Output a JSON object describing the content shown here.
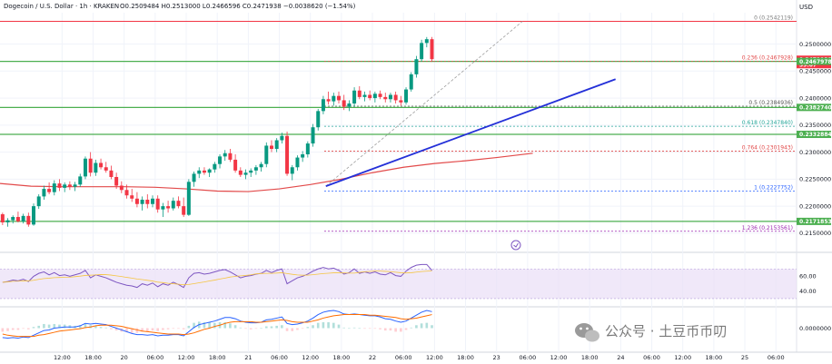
{
  "header": {
    "symbol": "Dogecoin / U.S. Dollar · 1h · KRAKEN",
    "ohlc": "O0.2509484 H0.2513000 L0.2466596 C0.2471938 −0.0038620 (−1.54%)"
  },
  "currency": "USD",
  "watermark": "公众号 · 土豆币币叨",
  "colors": {
    "up": "#089981",
    "down": "#f23645",
    "trend": "#2430d8",
    "ma": "#e24a4a",
    "support": "#4caf50",
    "rsi": "#7e57c2",
    "rsi_band": "#e9def7",
    "macd": "#2962ff",
    "signal": "#ff6d00"
  },
  "chart_data": {
    "type": "candlestick",
    "ylim": [
      0.2128,
      0.2558
    ],
    "y_ticks": [
      "0.2500000",
      "0.2450000",
      "0.2400000",
      "0.2350000",
      "0.2300000",
      "0.2250000",
      "0.2200000",
      "0.2150000"
    ],
    "x_ticks": [
      {
        "label": "00",
        "t": 0
      },
      {
        "label": "12:00",
        "t": 12
      },
      {
        "label": "18:00",
        "t": 18
      },
      {
        "label": "20",
        "t": 24
      },
      {
        "label": "06:00",
        "t": 30
      },
      {
        "label": "12:00",
        "t": 36
      },
      {
        "label": "18:00",
        "t": 42
      },
      {
        "label": "21",
        "t": 48
      },
      {
        "label": "06:00",
        "t": 54
      },
      {
        "label": "12:00",
        "t": 60
      },
      {
        "label": "18:00",
        "t": 66
      },
      {
        "label": "22",
        "t": 72
      },
      {
        "label": "06:00",
        "t": 78
      },
      {
        "label": "12:00",
        "t": 84
      },
      {
        "label": "18:00",
        "t": 90
      },
      {
        "label": "23",
        "t": 96
      },
      {
        "label": "06:00",
        "t": 102
      },
      {
        "label": "12:00",
        "t": 108
      },
      {
        "label": "18:00",
        "t": 114
      },
      {
        "label": "24",
        "t": 120
      },
      {
        "label": "06:00",
        "t": 126
      },
      {
        "label": "12:00",
        "t": 132
      },
      {
        "label": "18:00",
        "t": 138
      },
      {
        "label": "25",
        "t": 144
      },
      {
        "label": "06:00",
        "t": 150
      }
    ],
    "x_range": [
      0,
      154
    ],
    "candles": [
      [
        0.2185,
        0.2188,
        0.2165,
        0.217
      ],
      [
        0.217,
        0.2178,
        0.2162,
        0.2174
      ],
      [
        0.2174,
        0.2183,
        0.2168,
        0.218
      ],
      [
        0.218,
        0.219,
        0.217,
        0.2172
      ],
      [
        0.2172,
        0.2186,
        0.2168,
        0.2182
      ],
      [
        0.2182,
        0.2188,
        0.2162,
        0.2166
      ],
      [
        0.2166,
        0.2205,
        0.2164,
        0.22
      ],
      [
        0.22,
        0.2222,
        0.2195,
        0.2218
      ],
      [
        0.2218,
        0.2238,
        0.2212,
        0.2232
      ],
      [
        0.2232,
        0.2244,
        0.2222,
        0.2226
      ],
      [
        0.2226,
        0.2248,
        0.222,
        0.2242
      ],
      [
        0.2242,
        0.225,
        0.2228,
        0.2234
      ],
      [
        0.2234,
        0.2244,
        0.2226,
        0.224
      ],
      [
        0.224,
        0.2246,
        0.223,
        0.2236
      ],
      [
        0.2236,
        0.2245,
        0.2228,
        0.224
      ],
      [
        0.224,
        0.226,
        0.2236,
        0.2255
      ],
      [
        0.2255,
        0.2292,
        0.225,
        0.2288
      ],
      [
        0.2288,
        0.23,
        0.2255,
        0.2262
      ],
      [
        0.2262,
        0.2286,
        0.2256,
        0.228
      ],
      [
        0.228,
        0.2288,
        0.2268,
        0.2272
      ],
      [
        0.2272,
        0.2282,
        0.2262,
        0.2266
      ],
      [
        0.2266,
        0.2275,
        0.225,
        0.2254
      ],
      [
        0.2254,
        0.2262,
        0.2232,
        0.2238
      ],
      [
        0.2238,
        0.2246,
        0.2224,
        0.223
      ],
      [
        0.223,
        0.224,
        0.2214,
        0.222
      ],
      [
        0.222,
        0.2232,
        0.2208,
        0.2214
      ],
      [
        0.2214,
        0.2226,
        0.2198,
        0.2204
      ],
      [
        0.2204,
        0.2218,
        0.2192,
        0.2212
      ],
      [
        0.2212,
        0.2222,
        0.2196,
        0.2204
      ],
      [
        0.2204,
        0.222,
        0.2198,
        0.2214
      ],
      [
        0.2214,
        0.222,
        0.2188,
        0.2194
      ],
      [
        0.2194,
        0.2206,
        0.218,
        0.22
      ],
      [
        0.22,
        0.221,
        0.2188,
        0.2196
      ],
      [
        0.2196,
        0.2216,
        0.2192,
        0.221
      ],
      [
        0.221,
        0.2218,
        0.2196,
        0.22
      ],
      [
        0.22,
        0.2216,
        0.218,
        0.2184
      ],
      [
        0.2184,
        0.225,
        0.2182,
        0.2245
      ],
      [
        0.2245,
        0.2264,
        0.2236,
        0.226
      ],
      [
        0.226,
        0.2272,
        0.2252,
        0.2266
      ],
      [
        0.2266,
        0.2272,
        0.2258,
        0.2262
      ],
      [
        0.2262,
        0.227,
        0.2254,
        0.2268
      ],
      [
        0.2268,
        0.2282,
        0.2262,
        0.2278
      ],
      [
        0.2278,
        0.2296,
        0.227,
        0.2292
      ],
      [
        0.2292,
        0.2304,
        0.2284,
        0.2298
      ],
      [
        0.2298,
        0.2306,
        0.2282,
        0.2286
      ],
      [
        0.2286,
        0.2296,
        0.2262,
        0.2266
      ],
      [
        0.2266,
        0.2272,
        0.2254,
        0.2258
      ],
      [
        0.2258,
        0.2268,
        0.225,
        0.2262
      ],
      [
        0.2262,
        0.227,
        0.2254,
        0.2266
      ],
      [
        0.2266,
        0.2276,
        0.2258,
        0.2272
      ],
      [
        0.2272,
        0.2282,
        0.2264,
        0.2278
      ],
      [
        0.2278,
        0.2318,
        0.2272,
        0.2312
      ],
      [
        0.2312,
        0.2322,
        0.23,
        0.2306
      ],
      [
        0.2306,
        0.2326,
        0.23,
        0.2322
      ],
      [
        0.2322,
        0.2336,
        0.2316,
        0.233
      ],
      [
        0.233,
        0.2338,
        0.2256,
        0.226
      ],
      [
        0.226,
        0.2276,
        0.2248,
        0.2272
      ],
      [
        0.2272,
        0.2294,
        0.2266,
        0.229
      ],
      [
        0.229,
        0.2302,
        0.2282,
        0.2296
      ],
      [
        0.2296,
        0.232,
        0.229,
        0.2316
      ],
      [
        0.2316,
        0.2352,
        0.231,
        0.2346
      ],
      [
        0.2346,
        0.238,
        0.234,
        0.2376
      ],
      [
        0.2376,
        0.2404,
        0.237,
        0.2398
      ],
      [
        0.2398,
        0.2412,
        0.2388,
        0.2394
      ],
      [
        0.2394,
        0.241,
        0.2386,
        0.2404
      ],
      [
        0.2404,
        0.2412,
        0.239,
        0.2396
      ],
      [
        0.2396,
        0.2406,
        0.2378,
        0.2384
      ],
      [
        0.2384,
        0.2396,
        0.2376,
        0.239
      ],
      [
        0.239,
        0.242,
        0.2384,
        0.2414
      ],
      [
        0.2414,
        0.2422,
        0.2398,
        0.2402
      ],
      [
        0.2402,
        0.2412,
        0.2394,
        0.2406
      ],
      [
        0.2406,
        0.2414,
        0.2396,
        0.24
      ],
      [
        0.24,
        0.2412,
        0.2392,
        0.2408
      ],
      [
        0.2408,
        0.2414,
        0.2398,
        0.2402
      ],
      [
        0.2402,
        0.241,
        0.2392,
        0.2398
      ],
      [
        0.2398,
        0.241,
        0.2392,
        0.2406
      ],
      [
        0.2406,
        0.2412,
        0.239,
        0.2396
      ],
      [
        0.2396,
        0.2404,
        0.2386,
        0.2392
      ],
      [
        0.2392,
        0.242,
        0.2388,
        0.2416
      ],
      [
        0.2416,
        0.2448,
        0.2412,
        0.2444
      ],
      [
        0.2444,
        0.2478,
        0.2438,
        0.2472
      ],
      [
        0.2472,
        0.2508,
        0.2468,
        0.2502
      ],
      [
        0.2502,
        0.2513,
        0.2494,
        0.2509
      ],
      [
        0.2509,
        0.2513,
        0.2467,
        0.2472
      ]
    ],
    "ma": {
      "name": "MA",
      "values": [
        [
          0,
          0.2242
        ],
        [
          6,
          0.2237
        ],
        [
          12,
          0.2236
        ],
        [
          18,
          0.2236
        ],
        [
          24,
          0.2236
        ],
        [
          30,
          0.2235
        ],
        [
          36,
          0.2232
        ],
        [
          42,
          0.2228
        ],
        [
          48,
          0.2227
        ],
        [
          54,
          0.2232
        ],
        [
          60,
          0.224
        ],
        [
          66,
          0.225
        ],
        [
          72,
          0.2262
        ],
        [
          78,
          0.2272
        ],
        [
          84,
          0.2279
        ],
        [
          90,
          0.2284
        ],
        [
          96,
          0.229
        ],
        [
          103,
          0.2298
        ]
      ]
    },
    "trendline": [
      [
        63,
        0.2237
      ],
      [
        119,
        0.2435
      ]
    ],
    "projection": [
      [
        63,
        0.2237
      ],
      [
        101,
        0.2542
      ]
    ],
    "support_lines": [
      0.2467978,
      0.238274,
      0.2332884,
      0.2171853
    ],
    "fibonacci": [
      {
        "label": "0 (0.2542119)",
        "value": 0.2542119,
        "color": "#7b7b7b"
      },
      {
        "label": "0.236 (0.2467928)",
        "value": 0.2467928,
        "color": "#e24a4a"
      },
      {
        "label": "0.5 (0.2384936)",
        "value": 0.2384936,
        "color": "#555555"
      },
      {
        "label": "0.618 (0.2347840)",
        "value": 0.234784,
        "color": "#26a69a"
      },
      {
        "label": "0.764 (0.2301943)",
        "value": 0.2301943,
        "color": "#e24a4a"
      },
      {
        "label": "1 (0.2227752)",
        "value": 0.2227752,
        "color": "#2962ff"
      },
      {
        "label": "1.236 (0.2153561)",
        "value": 0.2153561,
        "color": "#9c27b0"
      }
    ],
    "price_tags": [
      {
        "value": 0.2471938,
        "text": "0.2471938",
        "sub": "39:07",
        "color": "#f23645"
      },
      {
        "value": 0.2467978,
        "text": "0.2467978",
        "color": "#4caf50"
      },
      {
        "value": 0.238274,
        "text": "0.2382740",
        "color": "#4caf50"
      },
      {
        "value": 0.2332884,
        "text": "0.2332884",
        "color": "#4caf50"
      },
      {
        "value": 0.2171853,
        "text": "0.2171853",
        "color": "#4caf50"
      }
    ],
    "rsi": {
      "ylim": [
        25,
        85
      ],
      "band": [
        30,
        70
      ],
      "ticks": [
        "60.00",
        "40.00"
      ],
      "values": [
        52,
        53,
        55,
        54,
        56,
        53,
        60,
        64,
        66,
        62,
        65,
        61,
        62,
        60,
        62,
        64,
        68,
        58,
        62,
        60,
        58,
        55,
        52,
        50,
        48,
        47,
        45,
        50,
        48,
        51,
        46,
        50,
        48,
        52,
        49,
        45,
        58,
        64,
        65,
        63,
        64,
        66,
        68,
        69,
        66,
        62,
        58,
        60,
        61,
        63,
        64,
        68,
        65,
        68,
        70,
        50,
        54,
        58,
        60,
        63,
        67,
        70,
        72,
        70,
        71,
        68,
        63,
        65,
        70,
        64,
        66,
        64,
        66,
        63,
        62,
        65,
        61,
        60,
        67,
        72,
        75,
        76,
        76,
        68
      ]
    },
    "macd": {
      "ylim": [
        -0.003,
        0.003
      ],
      "ticks": [
        "0.0000000"
      ],
      "macd": [
        -0.0016,
        -0.0017,
        -0.0016,
        -0.0017,
        -0.0015,
        -0.0016,
        -0.0012,
        -0.0008,
        -0.0004,
        -0.0003,
        0.0,
        0.0001,
        0.0002,
        0.0002,
        0.0002,
        0.0004,
        0.0008,
        0.0007,
        0.0008,
        0.0007,
        0.0006,
        0.0003,
        0.0,
        -0.0003,
        -0.0006,
        -0.0009,
        -0.0011,
        -0.0011,
        -0.0012,
        -0.0011,
        -0.0013,
        -0.0012,
        -0.0012,
        -0.0011,
        -0.0011,
        -0.0013,
        -0.0006,
        0.0001,
        0.0006,
        0.0008,
        0.001,
        0.0012,
        0.0015,
        0.0018,
        0.0018,
        0.0016,
        0.0012,
        0.001,
        0.0009,
        0.0009,
        0.001,
        0.0014,
        0.0015,
        0.0017,
        0.0019,
        0.0008,
        0.0006,
        0.0007,
        0.0009,
        0.0012,
        0.0017,
        0.0023,
        0.0027,
        0.0029,
        0.003,
        0.0028,
        0.0024,
        0.0023,
        0.0024,
        0.0023,
        0.0022,
        0.0021,
        0.0021,
        0.0019,
        0.0016,
        0.0015,
        0.0012,
        0.001,
        0.0012,
        0.0017,
        0.0022,
        0.0027,
        0.003,
        0.0028
      ],
      "signal": [
        -0.001,
        -0.0012,
        -0.0013,
        -0.0014,
        -0.0014,
        -0.0014,
        -0.0014,
        -0.0012,
        -0.0011,
        -0.0009,
        -0.0007,
        -0.0005,
        -0.0004,
        -0.0003,
        -0.0002,
        -0.0001,
        0.0001,
        0.0002,
        0.0004,
        0.0005,
        0.0005,
        0.0005,
        0.0004,
        0.0003,
        0.0001,
        -0.0001,
        -0.0003,
        -0.0005,
        -0.0006,
        -0.0007,
        -0.0008,
        -0.0009,
        -0.001,
        -0.001,
        -0.001,
        -0.0011,
        -0.001,
        -0.0008,
        -0.0005,
        -0.0002,
        0.0,
        0.0003,
        0.0005,
        0.0008,
        0.001,
        0.0011,
        0.0011,
        0.0011,
        0.0011,
        0.001,
        0.001,
        0.0011,
        0.0012,
        0.0013,
        0.0014,
        0.0013,
        0.0011,
        0.001,
        0.001,
        0.001,
        0.0012,
        0.0014,
        0.0017,
        0.0019,
        0.0021,
        0.0022,
        0.0023,
        0.0023,
        0.0023,
        0.0023,
        0.0023,
        0.0022,
        0.0022,
        0.0021,
        0.002,
        0.0019,
        0.0018,
        0.0016,
        0.0015,
        0.0016,
        0.0017,
        0.0019,
        0.0021,
        0.0023
      ]
    }
  }
}
